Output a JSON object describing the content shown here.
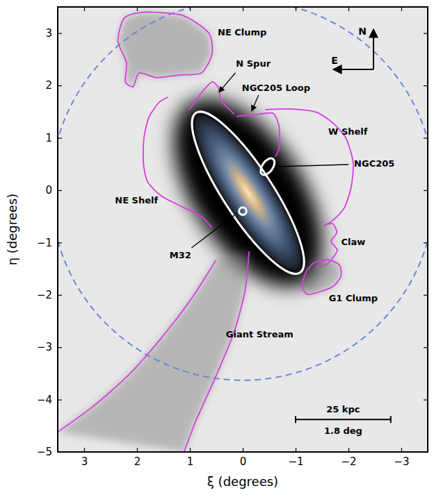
{
  "chart_data": {
    "type": "map",
    "x_label": "ξ (degrees)",
    "y_label": "η (degrees)",
    "xlim": [
      3.5,
      -3.5
    ],
    "ylim": [
      -5,
      3.5
    ],
    "xticks": [
      3,
      2,
      1,
      0,
      {
        "value": -1,
        "label": "−1"
      },
      {
        "value": -2,
        "label": "−2"
      },
      {
        "value": -3,
        "label": "−3"
      }
    ],
    "yticks": [
      3,
      2,
      1,
      0,
      {
        "value": -1,
        "label": "−1"
      },
      {
        "value": -2,
        "label": "−2"
      },
      {
        "value": -3,
        "label": "−3"
      },
      {
        "value": -4,
        "label": "−4"
      },
      {
        "value": -5,
        "label": "−5"
      }
    ],
    "color": "#d63fe0",
    "boundary": {
      "center": [
        0,
        0
      ],
      "radius": 3.63,
      "color": "#6f86d8",
      "line_style": "dashed"
    },
    "ellipses": [
      {
        "center": [
          -0.1,
          -0.05
        ],
        "axes": [
          1.82,
          0.47
        ],
        "pa": 33,
        "color": "#ffffff"
      },
      {
        "center": [
          -0.47,
          0.45
        ],
        "axes": [
          0.18,
          0.1
        ],
        "pa": -35,
        "color": "#ffffff"
      },
      {
        "center": [
          0,
          -0.4
        ],
        "axes": [
          0.07,
          0.07
        ],
        "pa": 0,
        "color": "#ffffff"
      }
    ],
    "regions": [
      {
        "label": "NE Clump",
        "closed": true,
        "label_at": [
          0.01,
          3.0
        ],
        "paths": [
          [
            [
              2.25,
              3.28
            ],
            [
              1.89,
              3.4
            ],
            [
              1.14,
              3.34
            ],
            [
              0.64,
              3.0
            ],
            [
              0.58,
              2.6
            ],
            [
              0.78,
              2.24
            ],
            [
              1.2,
              2.2
            ],
            [
              1.63,
              2.15
            ],
            [
              1.96,
              2.24
            ],
            [
              2.07,
              1.98
            ],
            [
              2.22,
              2.07
            ],
            [
              2.2,
              2.44
            ],
            [
              2.36,
              2.84
            ]
          ]
        ]
      },
      {
        "label": "N Spur",
        "closed": false,
        "label_at": [
          -0.2,
          2.4
        ],
        "pointer": [
          [
            0.14,
            2.24
          ],
          [
            0.45,
            1.87
          ]
        ],
        "marker": "arrow",
        "paths": [
          [
            [
              1.01,
              1.54
            ],
            [
              0.84,
              1.78
            ],
            [
              0.67,
              1.99
            ],
            [
              0.57,
              2.07
            ],
            [
              0.46,
              1.96
            ],
            [
              0.41,
              1.71
            ],
            [
              0.25,
              1.54
            ],
            [
              0.16,
              1.45
            ]
          ]
        ]
      },
      {
        "label": "NGC205 Loop",
        "closed": false,
        "label_at": [
          -0.63,
          1.94
        ],
        "pointer": [
          [
            -0.3,
            1.82
          ],
          [
            -0.17,
            1.51
          ]
        ],
        "marker": "arrow",
        "paths": [
          [
            [
              0.12,
              1.41
            ],
            [
              -0.28,
              1.45
            ],
            [
              -0.57,
              1.47
            ],
            [
              -0.68,
              1.25
            ],
            [
              -0.7,
              0.85
            ],
            [
              -0.62,
              0.64
            ]
          ]
        ]
      },
      {
        "label": "W Shelf",
        "closed": false,
        "label_at": [
          -1.99,
          1.11
        ],
        "paths": [
          [
            [
              -0.43,
              1.54
            ],
            [
              -0.93,
              1.55
            ],
            [
              -1.39,
              1.49
            ],
            [
              -1.72,
              1.27
            ],
            [
              -1.96,
              0.98
            ],
            [
              -2.09,
              0.52
            ],
            [
              -2.05,
              0.05
            ],
            [
              -1.92,
              -0.34
            ],
            [
              -1.7,
              -0.58
            ],
            [
              -1.53,
              -0.68
            ]
          ]
        ]
      },
      {
        "label": "NE Shelf",
        "closed": false,
        "label_at": [
          2.01,
          -0.2
        ],
        "paths": [
          [
            [
              1.41,
              1.78
            ],
            [
              1.59,
              1.67
            ],
            [
              1.78,
              1.38
            ],
            [
              1.87,
              0.98
            ],
            [
              1.88,
              0.52
            ],
            [
              1.8,
              0.16
            ],
            [
              1.54,
              -0.11
            ],
            [
              1.14,
              -0.32
            ],
            [
              0.78,
              -0.5
            ],
            [
              0.58,
              -0.72
            ]
          ]
        ]
      },
      {
        "label": "Claw",
        "closed": false,
        "label_at": [
          -2.09,
          -1.0
        ],
        "paths": [
          [
            [
              -1.53,
              -0.68
            ],
            [
              -1.7,
              -0.64
            ],
            [
              -1.78,
              -0.81
            ],
            [
              -1.67,
              -0.98
            ],
            [
              -1.79,
              -1.14
            ],
            [
              -1.7,
              -1.3
            ],
            [
              -1.57,
              -1.43
            ],
            [
              -1.39,
              -1.47
            ]
          ]
        ]
      },
      {
        "label": "G1 Clump",
        "closed": true,
        "label_at": [
          -2.09,
          -2.08
        ],
        "paths": [
          [
            [
              -1.2,
              -1.56
            ],
            [
              -1.36,
              -1.38
            ],
            [
              -1.62,
              -1.33
            ],
            [
              -1.83,
              -1.43
            ],
            [
              -1.86,
              -1.64
            ],
            [
              -1.72,
              -1.83
            ],
            [
              -1.46,
              -1.94
            ],
            [
              -1.22,
              -1.99
            ],
            [
              -1.12,
              -1.83
            ]
          ]
        ]
      },
      {
        "label": "Giant Stream",
        "closed": false,
        "label_at": [
          -0.32,
          -2.76
        ],
        "paths": [
          [
            [
              0.51,
              -1.34
            ],
            [
              0.97,
              -2.07
            ],
            [
              1.57,
              -2.86
            ],
            [
              2.16,
              -3.53
            ],
            [
              2.82,
              -4.12
            ],
            [
              3.5,
              -4.62
            ]
          ],
          [
            [
              -0.12,
              -1.17
            ],
            [
              -0.04,
              -1.94
            ],
            [
              0.17,
              -2.73
            ],
            [
              0.54,
              -3.63
            ],
            [
              0.88,
              -4.39
            ],
            [
              1.11,
              -5.0
            ]
          ]
        ]
      }
    ],
    "labels": [
      {
        "text": "NGC205",
        "at": [
          -2.49,
          0.49
        ],
        "pointer": [
          [
            -2.0,
            0.49
          ],
          [
            -0.64,
            0.45
          ]
        ]
      },
      {
        "text": "M32",
        "at": [
          1.18,
          -1.25
        ],
        "pointer": [
          [
            0.97,
            -1.1
          ],
          [
            0.16,
            -0.48
          ]
        ]
      }
    ],
    "compass": [
      "N",
      "E"
    ],
    "scale_bar": {
      "value_labels": [
        "25 kpc",
        "1.8 deg"
      ],
      "length": 1.8,
      "at": [
        -1,
        -4.38
      ]
    }
  }
}
